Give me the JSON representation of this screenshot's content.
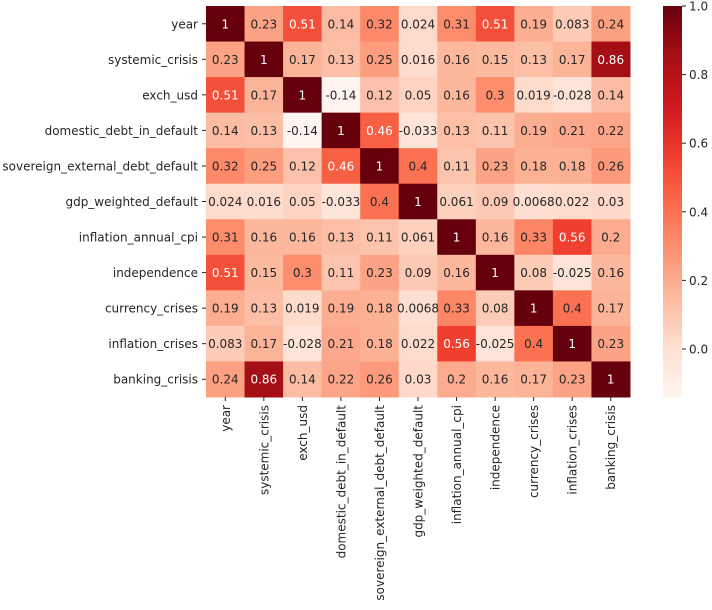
{
  "chart_data": {
    "type": "heatmap",
    "title": "",
    "xlabel": "",
    "ylabel": "",
    "colormap": "Reds",
    "vmin": -0.14,
    "vmax": 1.0,
    "variables": [
      "year",
      "systemic_crisis",
      "exch_usd",
      "domestic_debt_in_default",
      "sovereign_external_debt_default",
      "gdp_weighted_default",
      "inflation_annual_cpi",
      "independence",
      "currency_crises",
      "inflation_crises",
      "banking_crisis"
    ],
    "matrix": [
      [
        1,
        0.23,
        0.51,
        0.14,
        0.32,
        0.024,
        0.31,
        0.51,
        0.19,
        0.083,
        0.24
      ],
      [
        0.23,
        1,
        0.17,
        0.13,
        0.25,
        0.016,
        0.16,
        0.15,
        0.13,
        0.17,
        0.86
      ],
      [
        0.51,
        0.17,
        1,
        -0.14,
        0.12,
        0.05,
        0.16,
        0.3,
        0.019,
        -0.028,
        0.14
      ],
      [
        0.14,
        0.13,
        -0.14,
        1,
        0.46,
        -0.033,
        0.13,
        0.11,
        0.19,
        0.21,
        0.22
      ],
      [
        0.32,
        0.25,
        0.12,
        0.46,
        1,
        0.4,
        0.11,
        0.23,
        0.18,
        0.18,
        0.26
      ],
      [
        0.024,
        0.016,
        0.05,
        -0.033,
        0.4,
        1,
        0.061,
        0.09,
        0.0068,
        0.022,
        0.03
      ],
      [
        0.31,
        0.16,
        0.16,
        0.13,
        0.11,
        0.061,
        1,
        0.16,
        0.33,
        0.56,
        0.2
      ],
      [
        0.51,
        0.15,
        0.3,
        0.11,
        0.23,
        0.09,
        0.16,
        1,
        0.08,
        -0.025,
        0.16
      ],
      [
        0.19,
        0.13,
        0.019,
        0.19,
        0.18,
        0.0068,
        0.33,
        0.08,
        1,
        0.4,
        0.17
      ],
      [
        0.083,
        0.17,
        -0.028,
        0.21,
        0.18,
        0.022,
        0.56,
        -0.025,
        0.4,
        1,
        0.23
      ],
      [
        0.24,
        0.86,
        0.14,
        0.22,
        0.26,
        0.03,
        0.2,
        0.16,
        0.17,
        0.23,
        1
      ]
    ],
    "cell_labels": [
      [
        "1",
        "0.23",
        "0.51",
        "0.14",
        "0.32",
        "0.024",
        "0.31",
        "0.51",
        "0.19",
        "0.083",
        "0.24"
      ],
      [
        "0.23",
        "1",
        "0.17",
        "0.13",
        "0.25",
        "0.016",
        "0.16",
        "0.15",
        "0.13",
        "0.17",
        "0.86"
      ],
      [
        "0.51",
        "0.17",
        "1",
        "-0.14",
        "0.12",
        "0.05",
        "0.16",
        "0.3",
        "0.019",
        "-0.028",
        "0.14"
      ],
      [
        "0.14",
        "0.13",
        "-0.14",
        "1",
        "0.46",
        "-0.033",
        "0.13",
        "0.11",
        "0.19",
        "0.21",
        "0.22"
      ],
      [
        "0.32",
        "0.25",
        "0.12",
        "0.46",
        "1",
        "0.4",
        "0.11",
        "0.23",
        "0.18",
        "0.18",
        "0.26"
      ],
      [
        "0.024",
        "0.016",
        "0.05",
        "-0.033",
        "0.4",
        "1",
        "0.061",
        "0.09",
        "0.0068",
        "0.022",
        "0.03"
      ],
      [
        "0.31",
        "0.16",
        "0.16",
        "0.13",
        "0.11",
        "0.061",
        "1",
        "0.16",
        "0.33",
        "0.56",
        "0.2"
      ],
      [
        "0.51",
        "0.15",
        "0.3",
        "0.11",
        "0.23",
        "0.09",
        "0.16",
        "1",
        "0.08",
        "-0.025",
        "0.16"
      ],
      [
        "0.19",
        "0.13",
        "0.019",
        "0.19",
        "0.18",
        "0.0068",
        "0.33",
        "0.08",
        "1",
        "0.4",
        "0.17"
      ],
      [
        "0.083",
        "0.17",
        "-0.028",
        "0.21",
        "0.18",
        "0.022",
        "0.56",
        "-0.025",
        "0.4",
        "1",
        "0.23"
      ],
      [
        "0.24",
        "0.86",
        "0.14",
        "0.22",
        "0.26",
        "0.03",
        "0.2",
        "0.16",
        "0.17",
        "0.23",
        "1"
      ]
    ],
    "colorbar": {
      "ticks": [
        1.0,
        0.8,
        0.6,
        0.4,
        0.2,
        0.0
      ],
      "tick_labels": [
        "1.0",
        "0.8",
        "0.6",
        "0.4",
        "0.2",
        "0.0"
      ]
    }
  }
}
